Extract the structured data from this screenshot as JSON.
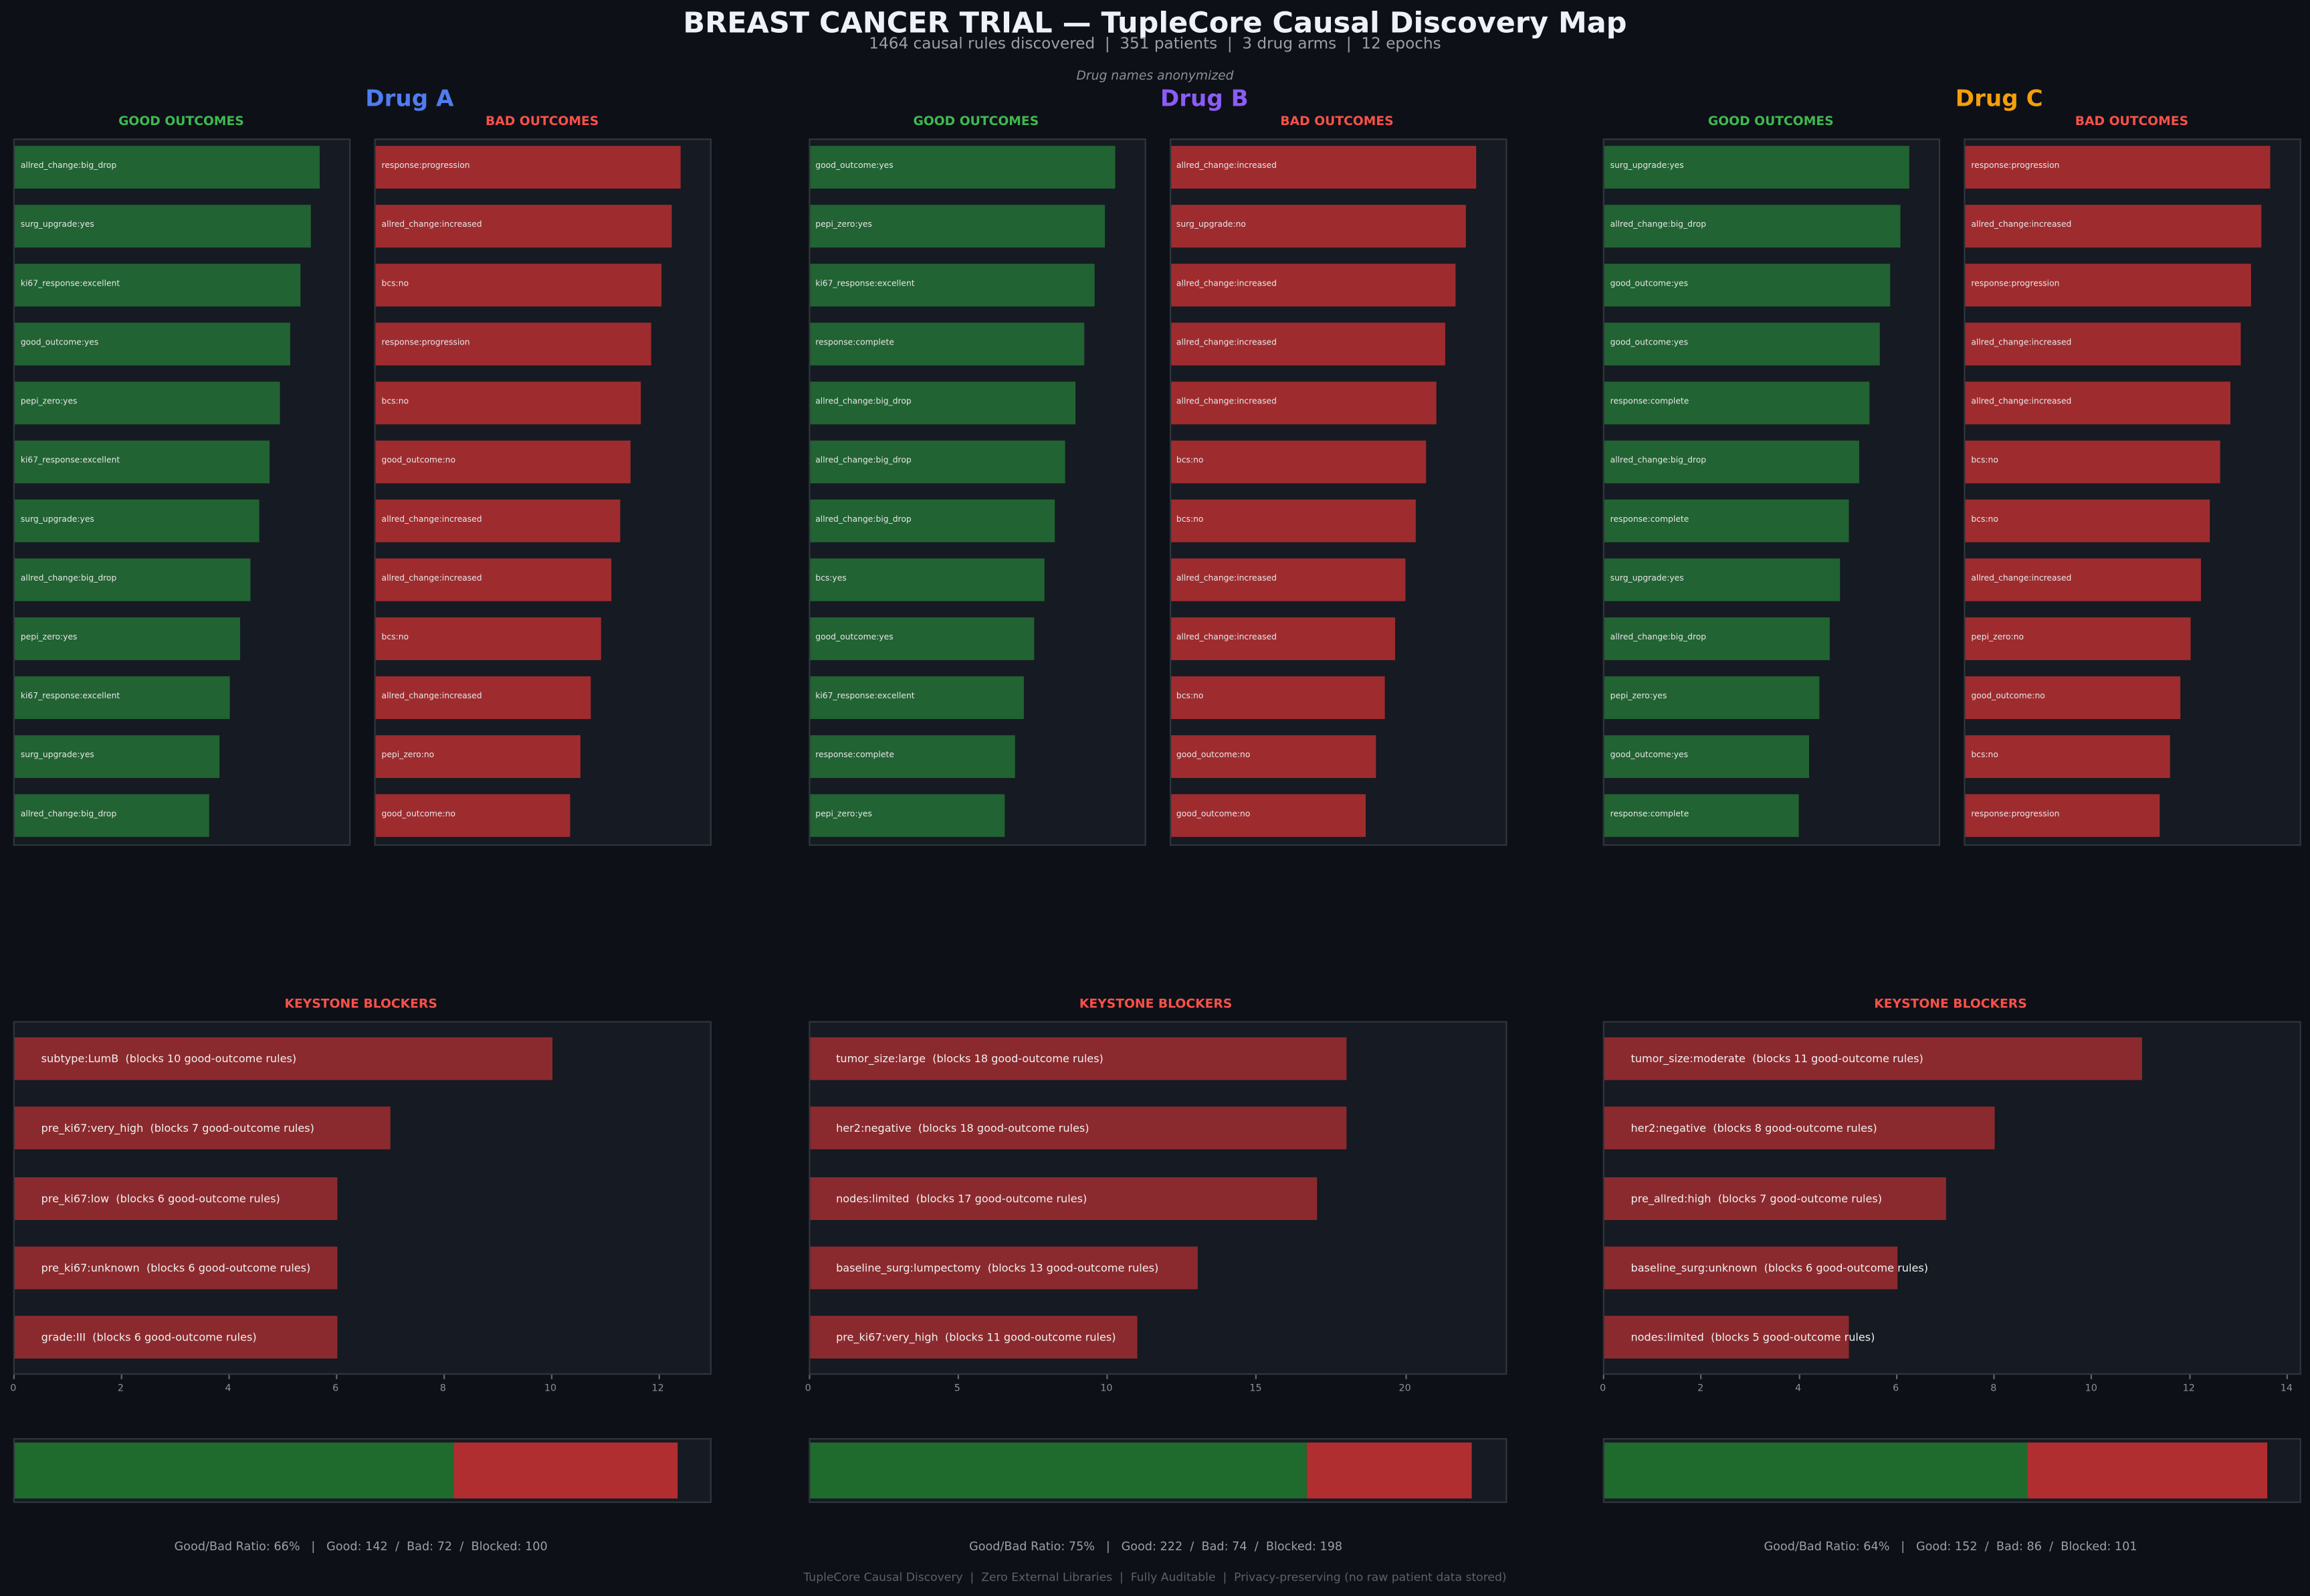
{
  "header": {
    "title": "BREAST CANCER TRIAL — TupleCore Causal Discovery Map",
    "subtitle": "1464 causal rules discovered  |  351 patients  |  3 drug arms  |  12 epochs",
    "note": "Drug names anonymized"
  },
  "footer": "TupleCore Causal Discovery  |  Zero External Libraries  |  Fully Auditable  |  Privacy-preserving (no raw patient data stored)",
  "colors": {
    "background": "#0d1017",
    "panel": "#161a22",
    "good_bar": "#216332",
    "bad_bar": "#9e2c2f",
    "keystone_bar": "#8b2a2e",
    "ratio_good": "#1f6b2e",
    "ratio_bad": "#b02e30",
    "good_title": "#3fb950",
    "bad_title": "#f85149"
  },
  "chart_data": [
    {
      "type": "bar",
      "drug": "Drug A",
      "drug_color": "#4f7cf0",
      "good": {
        "title": "GOOD OUTCOMES",
        "labels": [
          "allred_change:big_drop",
          "surg_upgrade:yes",
          "ki67_response:excellent",
          "good_outcome:yes",
          "pepi_zero:yes",
          "ki67_response:excellent",
          "surg_upgrade:yes",
          "allred_change:big_drop",
          "pepi_zero:yes",
          "ki67_response:excellent",
          "surg_upgrade:yes",
          "allred_change:big_drop"
        ],
        "values": [
          0.91,
          0.88,
          0.85,
          0.82,
          0.79,
          0.76,
          0.73,
          0.7,
          0.67,
          0.64,
          0.61,
          0.58
        ]
      },
      "bad": {
        "title": "BAD OUTCOMES",
        "labels": [
          "response:progression",
          "allred_change:increased",
          "bcs:no",
          "response:progression",
          "bcs:no",
          "good_outcome:no",
          "allred_change:increased",
          "allred_change:increased",
          "bcs:no",
          "allred_change:increased",
          "pepi_zero:no",
          "good_outcome:no"
        ],
        "values": [
          0.91,
          0.88,
          0.85,
          0.82,
          0.79,
          0.76,
          0.73,
          0.7,
          0.67,
          0.64,
          0.61,
          0.58
        ]
      },
      "keystone": {
        "title": "KEYSTONE BLOCKERS",
        "labels": [
          "subtype:LumB  (blocks 10 good-outcome rules)",
          "pre_ki67:very_high  (blocks 7 good-outcome rules)",
          "pre_ki67:low  (blocks 6 good-outcome rules)",
          "pre_ki67:unknown  (blocks 6 good-outcome rules)",
          "grade:III  (blocks 6 good-outcome rules)"
        ],
        "values": [
          10,
          7,
          6,
          6,
          6
        ],
        "xlim": [
          0,
          13
        ],
        "ticks": [
          "0",
          "2",
          "4",
          "6",
          "8",
          "10",
          "12"
        ]
      },
      "ratio": {
        "good": 142,
        "bad": 72,
        "caption": "Good/Bad Ratio: 66%   |   Good: 142  /  Bad: 72  /  Blocked: 100"
      }
    },
    {
      "type": "bar",
      "drug": "Drug B",
      "drug_color": "#8b5cf6",
      "good": {
        "title": "GOOD OUTCOMES",
        "labels": [
          "good_outcome:yes",
          "pepi_zero:yes",
          "ki67_response:excellent",
          "response:complete",
          "allred_change:big_drop",
          "allred_change:big_drop",
          "allred_change:big_drop",
          "bcs:yes",
          "good_outcome:yes",
          "ki67_response:excellent",
          "response:complete",
          "pepi_zero:yes"
        ],
        "values": [
          0.91,
          0.88,
          0.85,
          0.82,
          0.79,
          0.76,
          0.73,
          0.7,
          0.67,
          0.64,
          0.61,
          0.58
        ]
      },
      "bad": {
        "title": "BAD OUTCOMES",
        "labels": [
          "allred_change:increased",
          "surg_upgrade:no",
          "allred_change:increased",
          "allred_change:increased",
          "allred_change:increased",
          "bcs:no",
          "bcs:no",
          "allred_change:increased",
          "allred_change:increased",
          "bcs:no",
          "good_outcome:no",
          "good_outcome:no"
        ],
        "values": [
          0.91,
          0.88,
          0.85,
          0.82,
          0.79,
          0.76,
          0.73,
          0.7,
          0.67,
          0.64,
          0.61,
          0.58
        ]
      },
      "keystone": {
        "title": "KEYSTONE BLOCKERS",
        "labels": [
          "tumor_size:large  (blocks 18 good-outcome rules)",
          "her2:negative  (blocks 18 good-outcome rules)",
          "nodes:limited  (blocks 17 good-outcome rules)",
          "baseline_surg:lumpectomy  (blocks 13 good-outcome rules)",
          "pre_ki67:very_high  (blocks 11 good-outcome rules)"
        ],
        "values": [
          18,
          18,
          17,
          13,
          11
        ],
        "xlim": [
          0,
          23.4
        ],
        "ticks": [
          "0",
          "5",
          "10",
          "15",
          "20"
        ]
      },
      "ratio": {
        "good": 222,
        "bad": 74,
        "caption": "Good/Bad Ratio: 75%   |   Good: 222  /  Bad: 74  /  Blocked: 198"
      }
    },
    {
      "type": "bar",
      "drug": "Drug C",
      "drug_color": "#f59e0b",
      "good": {
        "title": "GOOD OUTCOMES",
        "labels": [
          "surg_upgrade:yes",
          "allred_change:big_drop",
          "good_outcome:yes",
          "good_outcome:yes",
          "response:complete",
          "allred_change:big_drop",
          "response:complete",
          "surg_upgrade:yes",
          "allred_change:big_drop",
          "pepi_zero:yes",
          "good_outcome:yes",
          "response:complete"
        ],
        "values": [
          0.91,
          0.88,
          0.85,
          0.82,
          0.79,
          0.76,
          0.73,
          0.7,
          0.67,
          0.64,
          0.61,
          0.58
        ]
      },
      "bad": {
        "title": "BAD OUTCOMES",
        "labels": [
          "response:progression",
          "allred_change:increased",
          "response:progression",
          "allred_change:increased",
          "allred_change:increased",
          "bcs:no",
          "bcs:no",
          "allred_change:increased",
          "pepi_zero:no",
          "good_outcome:no",
          "bcs:no",
          "response:progression"
        ],
        "values": [
          0.91,
          0.88,
          0.85,
          0.82,
          0.79,
          0.76,
          0.73,
          0.7,
          0.67,
          0.64,
          0.61,
          0.58
        ]
      },
      "keystone": {
        "title": "KEYSTONE BLOCKERS",
        "labels": [
          "tumor_size:moderate  (blocks 11 good-outcome rules)",
          "her2:negative  (blocks 8 good-outcome rules)",
          "pre_allred:high  (blocks 7 good-outcome rules)",
          "baseline_surg:unknown  (blocks 6 good-outcome rules)",
          "nodes:limited  (blocks 5 good-outcome rules)"
        ],
        "values": [
          11,
          8,
          7,
          6,
          5
        ],
        "xlim": [
          0,
          14.3
        ],
        "ticks": [
          "0",
          "2",
          "4",
          "6",
          "8",
          "10",
          "12",
          "14"
        ]
      },
      "ratio": {
        "good": 152,
        "bad": 86,
        "caption": "Good/Bad Ratio: 64%   |   Good: 152  /  Bad: 86  /  Blocked: 101"
      }
    }
  ]
}
